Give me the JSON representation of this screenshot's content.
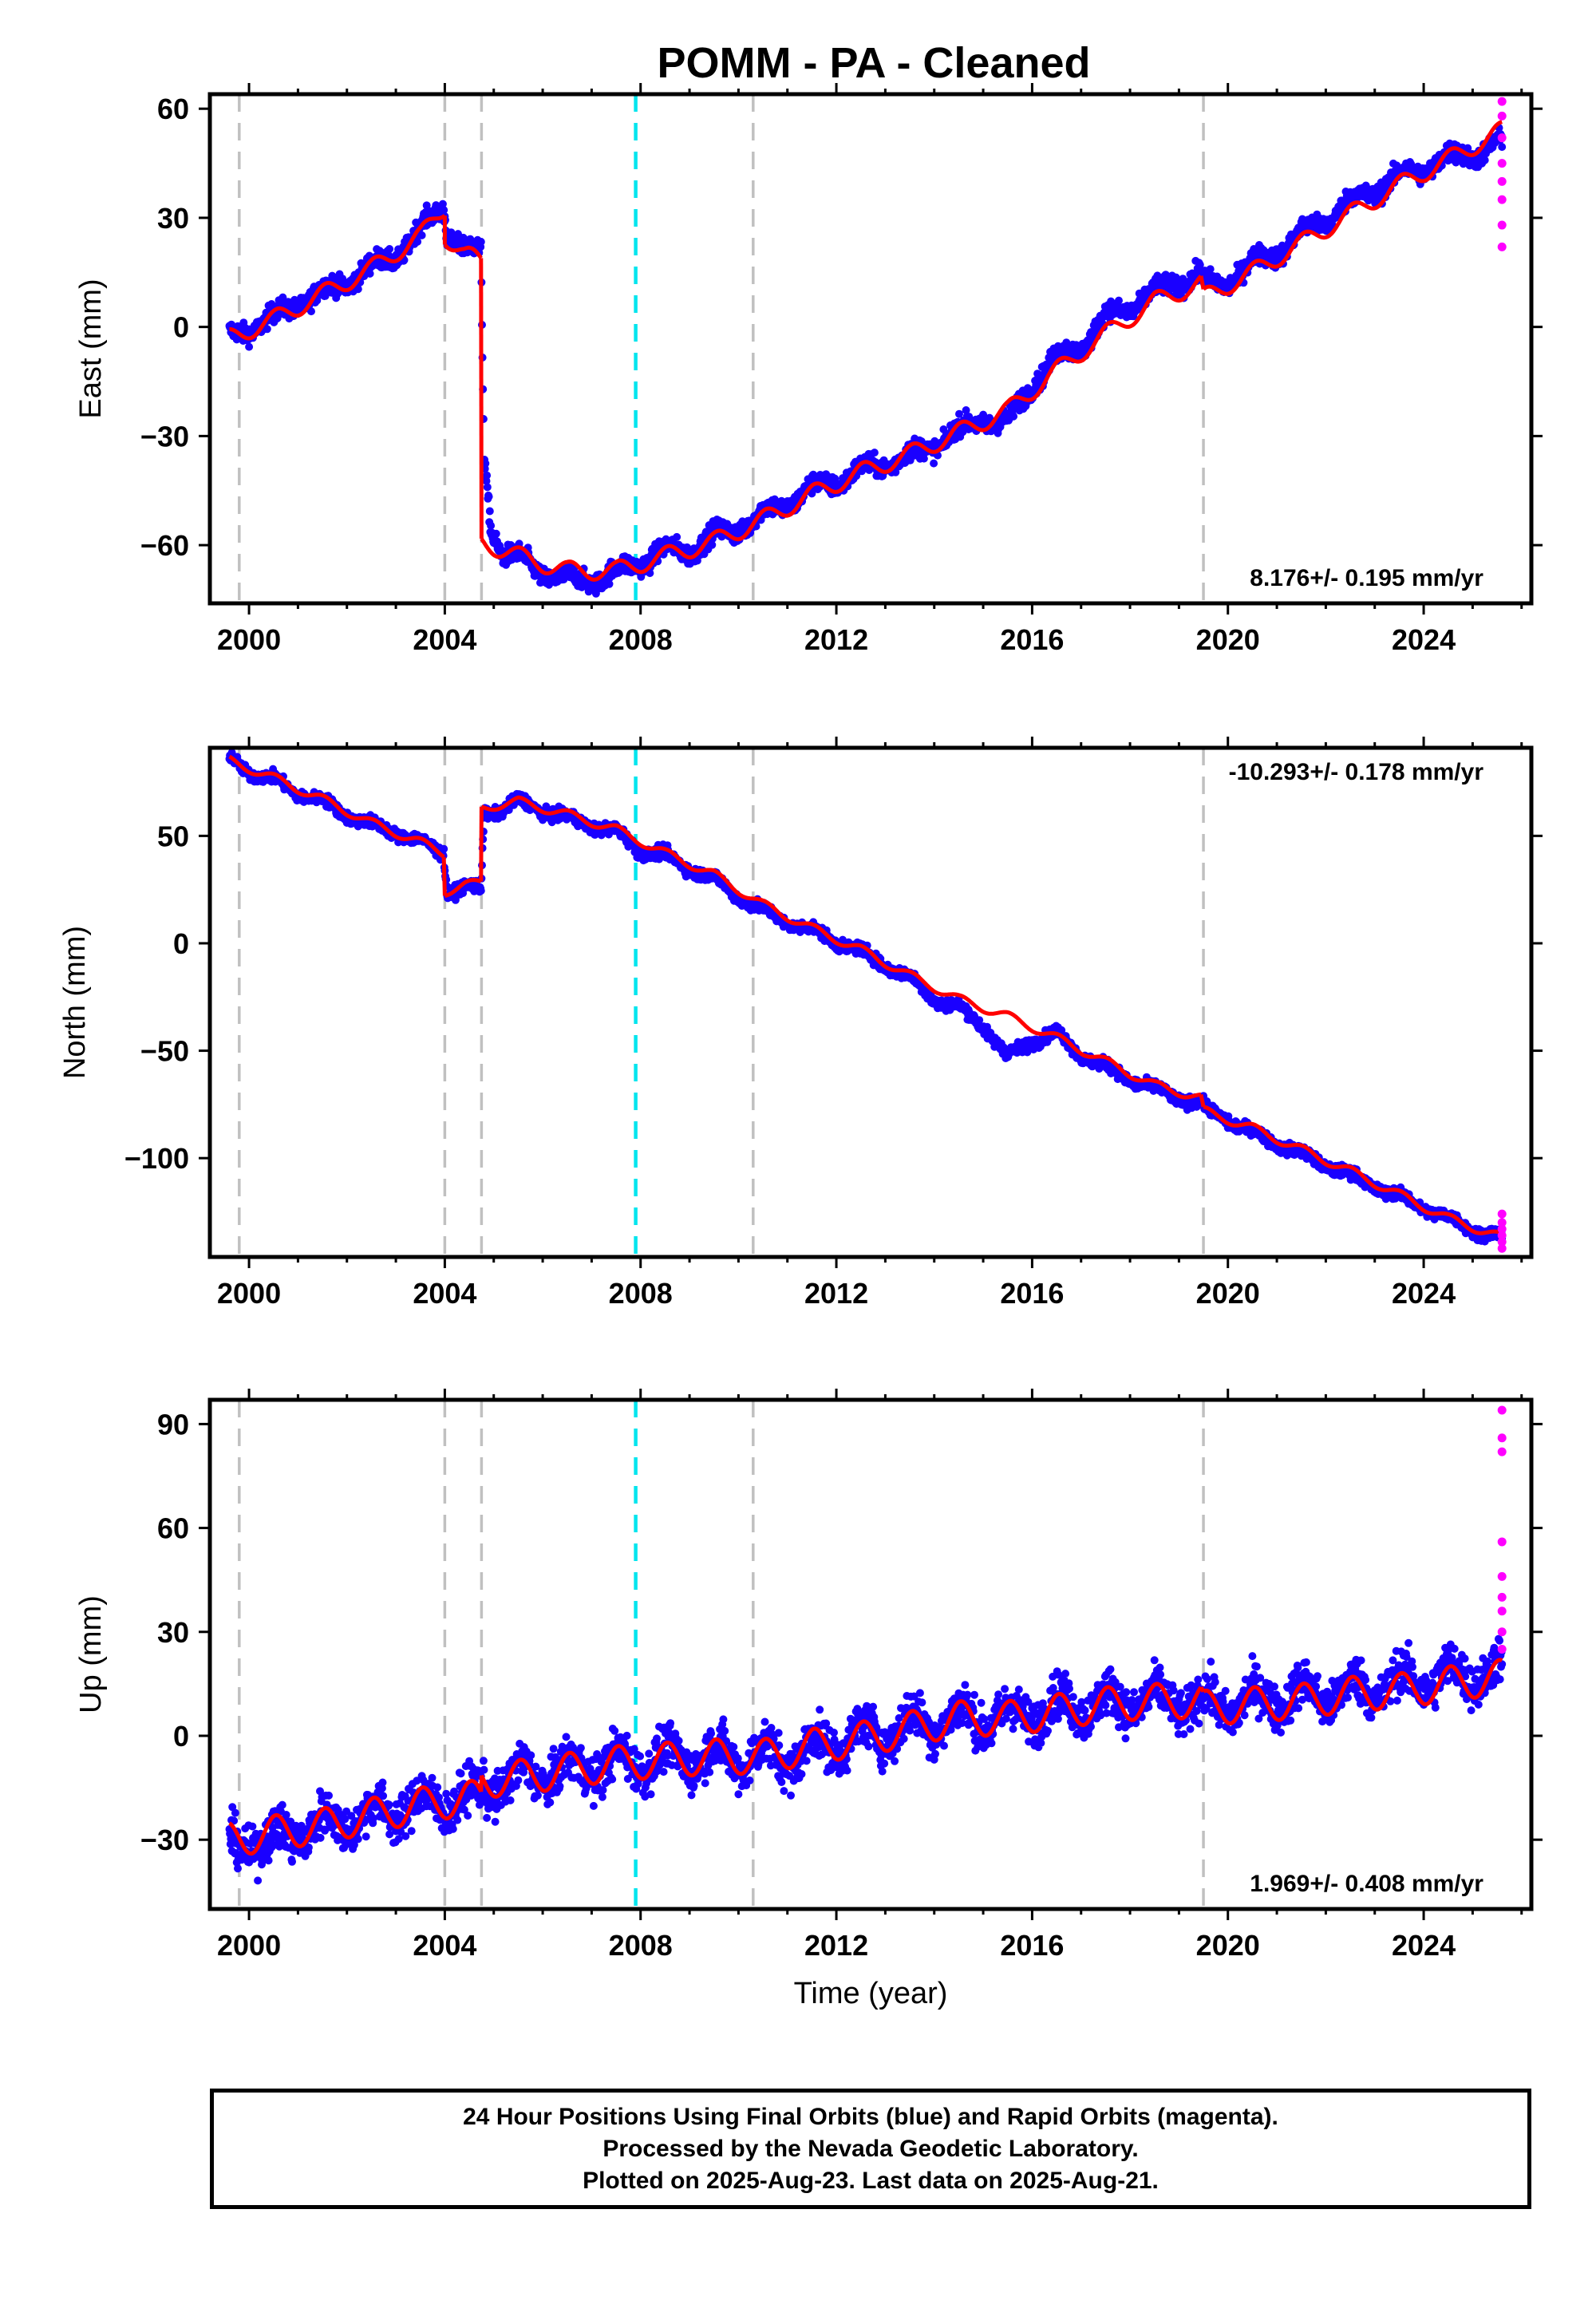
{
  "title": "POMM  - PA - Cleaned",
  "footer": {
    "line1": "24 Hour Positions Using Final Orbits (blue) and Rapid Orbits (magenta).",
    "line2": "Processed by the Nevada Geodetic Laboratory.",
    "line3": "Plotted on 2025-Aug-23. Last data on 2025-Aug-21."
  },
  "colors": {
    "final_orbits": "#1a00ff",
    "rapid_orbits": "#ff00ff",
    "model": "#ff0000",
    "equipment_change": "#c0c0c0",
    "earthquake": "#00e5ee"
  },
  "chart_data": [
    {
      "type": "scatter",
      "ylabel": "East (mm)",
      "xlim": [
        1999.2,
        2026.2
      ],
      "ylim": [
        -76,
        64
      ],
      "xticks": [
        2000,
        2004,
        2008,
        2012,
        2016,
        2020,
        2024
      ],
      "yticks": [
        -60,
        -30,
        0,
        30,
        60
      ],
      "grid": false,
      "rate_label": "8.176+/- 0.195 mm/yr",
      "rate_position": "bottom-right",
      "offsets": {
        "gray": [
          1999.8,
          2004.0,
          2004.75,
          2010.3,
          2019.5
        ],
        "cyan": [
          2007.9
        ]
      },
      "model": {
        "segments": [
          {
            "x": [
              1999.6,
              2000.5,
              2001.5,
              2002.5,
              2003.5,
              2004.0
            ],
            "y": [
              -3,
              2,
              9,
              16,
              25,
              33
            ]
          },
          {
            "x": [
              2004.0,
              2004.4,
              2004.74
            ],
            "y": [
              25,
              20,
              18
            ]
          },
          {
            "x": [
              2004.75,
              2005.5,
              2006.5,
              2007.5,
              2008.5,
              2009.5,
              2010.5,
              2011.5,
              2012.5,
              2013.5,
              2014.5,
              2015.5,
              2016.5,
              2017.5,
              2018.5,
              2019.45
            ],
            "y": [
              -59,
              -63,
              -67,
              -67,
              -63,
              -59,
              -53,
              -46,
              -40,
              -35,
              -29,
              -23,
              -12,
              -2,
              7,
              12
            ]
          },
          {
            "x": [
              2019.5,
              2020.5,
              2021.5,
              2022.5,
              2023.5,
              2024.5,
              2025.6
            ],
            "y": [
              8,
              15,
              23,
              31,
              39,
              46,
              54
            ]
          }
        ],
        "seasonal_amplitude": 2.5
      },
      "final_series": {
        "points": [
          [
            1999.6,
            -3
          ],
          [
            2000.0,
            0
          ],
          [
            2000.5,
            2
          ],
          [
            2001.0,
            7
          ],
          [
            2001.5,
            9
          ],
          [
            2002.0,
            13
          ],
          [
            2002.5,
            16
          ],
          [
            2003.0,
            20
          ],
          [
            2003.5,
            26
          ],
          [
            2003.98,
            34
          ],
          [
            2004.05,
            26
          ],
          [
            2004.4,
            21
          ],
          [
            2004.74,
            20
          ],
          [
            2004.8,
            -35
          ],
          [
            2004.95,
            -55
          ],
          [
            2005.2,
            -62
          ],
          [
            2005.5,
            -64
          ],
          [
            2006.0,
            -67
          ],
          [
            2006.5,
            -70
          ],
          [
            2007.0,
            -69
          ],
          [
            2007.5,
            -68
          ],
          [
            2008.0,
            -64
          ],
          [
            2008.5,
            -62
          ],
          [
            2009.0,
            -61
          ],
          [
            2009.5,
            -58
          ],
          [
            2010.0,
            -55
          ],
          [
            2010.5,
            -52
          ],
          [
            2011.0,
            -48
          ],
          [
            2011.5,
            -45
          ],
          [
            2012.0,
            -42
          ],
          [
            2012.5,
            -40
          ],
          [
            2013.0,
            -37
          ],
          [
            2013.5,
            -36
          ],
          [
            2014.0,
            -32
          ],
          [
            2014.5,
            -29
          ],
          [
            2015.0,
            -25
          ],
          [
            2015.5,
            -27
          ],
          [
            2016.0,
            -15
          ],
          [
            2016.5,
            -9
          ],
          [
            2017.0,
            -5
          ],
          [
            2017.5,
            2
          ],
          [
            2018.0,
            6
          ],
          [
            2018.5,
            9
          ],
          [
            2019.0,
            13
          ],
          [
            2019.4,
            14
          ],
          [
            2019.6,
            11
          ],
          [
            2020.0,
            13
          ],
          [
            2020.5,
            17
          ],
          [
            2021.0,
            21
          ],
          [
            2021.5,
            25
          ],
          [
            2022.0,
            30
          ],
          [
            2022.5,
            34
          ],
          [
            2023.0,
            38
          ],
          [
            2023.5,
            41
          ],
          [
            2024.0,
            44
          ],
          [
            2024.5,
            46
          ],
          [
            2025.0,
            48
          ],
          [
            2025.6,
            50
          ]
        ],
        "scatter_mm": 2.5
      },
      "rapid_points": [
        [
          2025.6,
          62
        ],
        [
          2025.6,
          58
        ],
        [
          2025.6,
          52
        ],
        [
          2025.6,
          45
        ],
        [
          2025.6,
          40
        ],
        [
          2025.6,
          35
        ],
        [
          2025.6,
          28
        ],
        [
          2025.6,
          22
        ]
      ]
    },
    {
      "type": "scatter",
      "ylabel": "North (mm)",
      "xlim": [
        1999.2,
        2026.2
      ],
      "ylim": [
        -146,
        91
      ],
      "xticks": [
        2000,
        2004,
        2008,
        2012,
        2016,
        2020,
        2024
      ],
      "yticks": [
        -100,
        -50,
        0,
        50
      ],
      "grid": false,
      "rate_label": "-10.293+/- 0.178 mm/yr",
      "rate_position": "top-right",
      "offsets": {
        "gray": [
          1999.8,
          2004.0,
          2004.75,
          2010.3,
          2019.5
        ],
        "cyan": [
          2007.9
        ]
      },
      "model": {
        "segments": [
          {
            "x": [
              1999.6,
              2000.5,
              2001.5,
              2002.5,
              2003.5,
              2003.98
            ],
            "y": [
              85,
              77,
              67,
              56,
              47,
              42
            ]
          },
          {
            "x": [
              2004.0,
              2004.4,
              2004.74
            ],
            "y": [
              24,
              27,
              28
            ]
          },
          {
            "x": [
              2004.75,
              2005.5,
              2006.5,
              2007.5,
              2008.5,
              2009.5,
              2010.5,
              2011.5,
              2012.5,
              2013.5,
              2014.5,
              2015.5,
              2016.5,
              2017.5,
              2018.5,
              2019.45
            ],
            "y": [
              63,
              66,
              60,
              53,
              42,
              32,
              18,
              7,
              -3,
              -15,
              -26,
              -34,
              -44,
              -55,
              -66,
              -72
            ]
          },
          {
            "x": [
              2019.5,
              2020.5,
              2021.5,
              2022.5,
              2023.5,
              2024.5,
              2025.6
            ],
            "y": [
              -78,
              -86,
              -96,
              -106,
              -117,
              -128,
              -137
            ]
          }
        ],
        "seasonal_amplitude": 2
      },
      "final_series": {
        "points": [
          [
            1999.6,
            86
          ],
          [
            2000.0,
            80
          ],
          [
            2000.5,
            76
          ],
          [
            2001.0,
            70
          ],
          [
            2001.5,
            66
          ],
          [
            2002.0,
            60
          ],
          [
            2002.5,
            55
          ],
          [
            2003.0,
            52
          ],
          [
            2003.5,
            47
          ],
          [
            2003.98,
            42
          ],
          [
            2004.05,
            24
          ],
          [
            2004.4,
            26
          ],
          [
            2004.74,
            25
          ],
          [
            2004.8,
            60
          ],
          [
            2005.2,
            63
          ],
          [
            2005.5,
            66
          ],
          [
            2006.0,
            62
          ],
          [
            2006.5,
            58
          ],
          [
            2007.0,
            55
          ],
          [
            2007.5,
            52
          ],
          [
            2008.0,
            43
          ],
          [
            2008.5,
            41
          ],
          [
            2009.0,
            35
          ],
          [
            2009.5,
            30
          ],
          [
            2010.0,
            22
          ],
          [
            2010.5,
            15
          ],
          [
            2011.0,
            10
          ],
          [
            2011.5,
            6
          ],
          [
            2012.0,
            1
          ],
          [
            2012.5,
            -4
          ],
          [
            2013.0,
            -10
          ],
          [
            2013.5,
            -16
          ],
          [
            2014.0,
            -26
          ],
          [
            2014.5,
            -30
          ],
          [
            2015.0,
            -38
          ],
          [
            2015.5,
            -53
          ],
          [
            2016.0,
            -45
          ],
          [
            2016.5,
            -42
          ],
          [
            2017.0,
            -52
          ],
          [
            2017.5,
            -58
          ],
          [
            2018.0,
            -63
          ],
          [
            2018.5,
            -68
          ],
          [
            2019.0,
            -72
          ],
          [
            2019.4,
            -74
          ],
          [
            2019.6,
            -78
          ],
          [
            2020.0,
            -82
          ],
          [
            2020.5,
            -88
          ],
          [
            2021.0,
            -93
          ],
          [
            2021.5,
            -98
          ],
          [
            2022.0,
            -103
          ],
          [
            2022.5,
            -108
          ],
          [
            2023.0,
            -113
          ],
          [
            2023.5,
            -118
          ],
          [
            2024.0,
            -123
          ],
          [
            2024.5,
            -128
          ],
          [
            2025.0,
            -133
          ],
          [
            2025.6,
            -137
          ]
        ],
        "scatter_mm": 2.5
      },
      "rapid_points": [
        [
          2025.6,
          -126
        ],
        [
          2025.6,
          -130
        ],
        [
          2025.6,
          -133
        ],
        [
          2025.6,
          -136
        ],
        [
          2025.6,
          -139
        ],
        [
          2025.6,
          -142
        ]
      ]
    },
    {
      "type": "scatter",
      "ylabel": "Up (mm)",
      "xlabel": "Time (year)",
      "xlim": [
        1999.2,
        2026.2
      ],
      "ylim": [
        -50,
        97
      ],
      "xticks": [
        2000,
        2004,
        2008,
        2012,
        2016,
        2020,
        2024
      ],
      "yticks": [
        -30,
        0,
        30,
        60,
        90
      ],
      "grid": false,
      "rate_label": "1.969+/- 0.408 mm/yr",
      "rate_position": "bottom-right",
      "offsets": {
        "gray": [
          1999.8,
          2004.0,
          2004.75,
          2010.3,
          2019.5
        ],
        "cyan": [
          2007.9
        ]
      },
      "model": {
        "segments": [
          {
            "x": [
              1999.6,
              2000.5,
              2001.5,
              2002.5,
              2003.5,
              2003.98
            ],
            "y": [
              -30,
              -28,
              -26,
              -23,
              -20,
              -19
            ]
          },
          {
            "x": [
              2004.0,
              2004.4,
              2004.74
            ],
            "y": [
              -19,
              -18,
              -18
            ]
          },
          {
            "x": [
              2004.75,
              2005.5,
              2006.5,
              2007.5,
              2008.5,
              2009.5,
              2010.5,
              2011.5,
              2012.5,
              2013.5,
              2014.5,
              2015.5,
              2016.5,
              2017.5,
              2018.5,
              2019.45
            ],
            "y": [
              -13,
              -12,
              -10,
              -8,
              -7,
              -6,
              -6,
              -3,
              -1,
              2,
              5,
              5,
              7,
              9,
              10,
              10
            ]
          },
          {
            "x": [
              2019.5,
              2020.5,
              2021.5,
              2022.5,
              2023.5,
              2024.5,
              2025.6
            ],
            "y": [
              8,
              9,
              10,
              12,
              13,
              15,
              17
            ]
          }
        ],
        "seasonal_amplitude": 5
      },
      "final_series": {
        "points": [
          [
            1999.6,
            -33
          ],
          [
            2000.0,
            -30
          ],
          [
            2000.5,
            -31
          ],
          [
            2001.0,
            -27
          ],
          [
            2001.5,
            -26
          ],
          [
            2002.0,
            -24
          ],
          [
            2002.5,
            -23
          ],
          [
            2003.0,
            -21
          ],
          [
            2003.5,
            -20
          ],
          [
            2004.0,
            -19
          ],
          [
            2004.5,
            -18
          ],
          [
            2005.0,
            -14
          ],
          [
            2005.5,
            -12
          ],
          [
            2006.0,
            -11
          ],
          [
            2006.5,
            -10
          ],
          [
            2007.0,
            -9
          ],
          [
            2007.5,
            -8
          ],
          [
            2008.0,
            -7
          ],
          [
            2008.5,
            -7
          ],
          [
            2009.0,
            -6
          ],
          [
            2009.5,
            -6
          ],
          [
            2010.0,
            -6
          ],
          [
            2010.5,
            -6
          ],
          [
            2011.0,
            -6
          ],
          [
            2011.5,
            -4
          ],
          [
            2012.0,
            -2
          ],
          [
            2012.5,
            0
          ],
          [
            2013.0,
            1
          ],
          [
            2013.5,
            3
          ],
          [
            2014.0,
            4
          ],
          [
            2014.5,
            5
          ],
          [
            2015.0,
            5
          ],
          [
            2015.5,
            5
          ],
          [
            2016.0,
            7
          ],
          [
            2016.5,
            8
          ],
          [
            2017.0,
            9
          ],
          [
            2017.5,
            9
          ],
          [
            2018.0,
            10
          ],
          [
            2018.5,
            10
          ],
          [
            2019.0,
            10
          ],
          [
            2019.5,
            9
          ],
          [
            2020.0,
            9
          ],
          [
            2020.5,
            10
          ],
          [
            2021.0,
            11
          ],
          [
            2021.5,
            12
          ],
          [
            2022.0,
            12
          ],
          [
            2022.5,
            13
          ],
          [
            2023.0,
            14
          ],
          [
            2023.5,
            15
          ],
          [
            2024.0,
            16
          ],
          [
            2024.5,
            17
          ],
          [
            2025.0,
            18
          ],
          [
            2025.6,
            18
          ]
        ],
        "scatter_mm": 6
      },
      "rapid_points": [
        [
          2025.6,
          94
        ],
        [
          2025.6,
          86
        ],
        [
          2025.6,
          82
        ],
        [
          2025.6,
          56
        ],
        [
          2025.6,
          46
        ],
        [
          2025.6,
          40
        ],
        [
          2025.6,
          36
        ],
        [
          2025.6,
          30
        ],
        [
          2025.6,
          25
        ]
      ]
    }
  ]
}
